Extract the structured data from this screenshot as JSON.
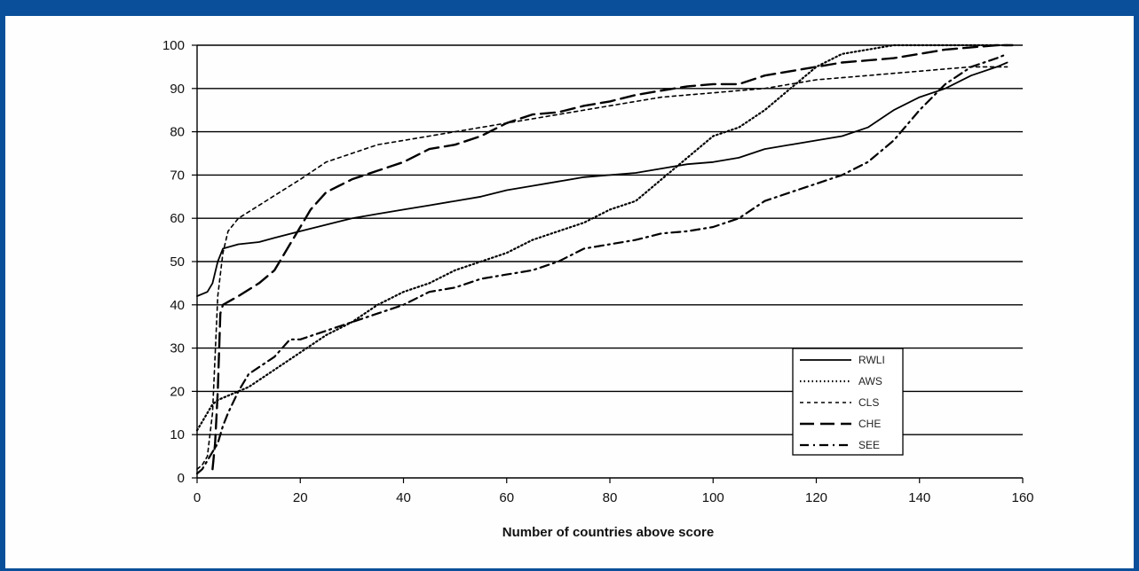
{
  "chart_data": {
    "type": "line",
    "title": "",
    "xlabel": "Number of countries above score",
    "ylabel": "",
    "xlim": [
      0,
      160
    ],
    "ylim": [
      0,
      100
    ],
    "x_ticks": [
      "0",
      "20",
      "40",
      "60",
      "80",
      "100",
      "120",
      "140",
      "160"
    ],
    "y_ticks": [
      "0",
      "10",
      "20",
      "30",
      "40",
      "50",
      "60",
      "70",
      "80",
      "90",
      "100"
    ],
    "grid": "horizontal",
    "legend_position": "lower-right",
    "series": [
      {
        "name": "RWLI",
        "dash": "solid",
        "points": [
          [
            0,
            42
          ],
          [
            2,
            43
          ],
          [
            3,
            45
          ],
          [
            4,
            50
          ],
          [
            5,
            53
          ],
          [
            8,
            54
          ],
          [
            12,
            54.5
          ],
          [
            15,
            55.5
          ],
          [
            20,
            57
          ],
          [
            25,
            58.5
          ],
          [
            30,
            60
          ],
          [
            35,
            61
          ],
          [
            40,
            62
          ],
          [
            45,
            63
          ],
          [
            50,
            64
          ],
          [
            55,
            65
          ],
          [
            60,
            66.5
          ],
          [
            65,
            67.5
          ],
          [
            70,
            68.5
          ],
          [
            75,
            69.5
          ],
          [
            80,
            70
          ],
          [
            85,
            70.5
          ],
          [
            90,
            71.5
          ],
          [
            95,
            72.5
          ],
          [
            100,
            73
          ],
          [
            105,
            74
          ],
          [
            110,
            76
          ],
          [
            115,
            77
          ],
          [
            120,
            78
          ],
          [
            125,
            79
          ],
          [
            130,
            81
          ],
          [
            135,
            85
          ],
          [
            140,
            88
          ],
          [
            145,
            90
          ],
          [
            150,
            93
          ],
          [
            155,
            95
          ],
          [
            157,
            96
          ]
        ]
      },
      {
        "name": "AWS",
        "dash": "dotted",
        "points": [
          [
            0,
            11
          ],
          [
            1,
            13
          ],
          [
            2,
            15
          ],
          [
            3,
            17
          ],
          [
            4,
            18
          ],
          [
            6,
            19
          ],
          [
            8,
            20
          ],
          [
            10,
            21
          ],
          [
            15,
            25
          ],
          [
            20,
            29
          ],
          [
            25,
            33
          ],
          [
            30,
            36
          ],
          [
            35,
            40
          ],
          [
            40,
            43
          ],
          [
            45,
            45
          ],
          [
            50,
            48
          ],
          [
            55,
            50
          ],
          [
            60,
            52
          ],
          [
            65,
            55
          ],
          [
            70,
            57
          ],
          [
            75,
            59
          ],
          [
            80,
            62
          ],
          [
            85,
            64
          ],
          [
            90,
            69
          ],
          [
            95,
            74
          ],
          [
            100,
            79
          ],
          [
            105,
            81
          ],
          [
            110,
            85
          ],
          [
            115,
            90
          ],
          [
            120,
            95
          ],
          [
            125,
            98
          ],
          [
            130,
            99
          ],
          [
            135,
            100
          ],
          [
            140,
            100
          ],
          [
            150,
            100
          ],
          [
            157,
            100
          ]
        ]
      },
      {
        "name": "CLS",
        "dash": "short-dash",
        "points": [
          [
            0,
            2
          ],
          [
            1,
            3
          ],
          [
            2,
            5
          ],
          [
            3,
            15
          ],
          [
            4,
            42
          ],
          [
            5,
            52
          ],
          [
            6,
            57
          ],
          [
            8,
            60
          ],
          [
            12,
            63
          ],
          [
            16,
            66
          ],
          [
            20,
            69
          ],
          [
            25,
            73
          ],
          [
            30,
            75
          ],
          [
            35,
            77
          ],
          [
            40,
            78
          ],
          [
            45,
            79
          ],
          [
            50,
            80
          ],
          [
            55,
            81
          ],
          [
            60,
            82
          ],
          [
            65,
            83
          ],
          [
            70,
            84
          ],
          [
            75,
            85
          ],
          [
            80,
            86
          ],
          [
            85,
            87
          ],
          [
            90,
            88
          ],
          [
            95,
            88.5
          ],
          [
            100,
            89
          ],
          [
            105,
            89.5
          ],
          [
            110,
            90
          ],
          [
            115,
            91
          ],
          [
            120,
            92
          ],
          [
            125,
            92.5
          ],
          [
            130,
            93
          ],
          [
            135,
            93.5
          ],
          [
            140,
            94
          ],
          [
            145,
            94.5
          ],
          [
            150,
            95
          ],
          [
            155,
            95
          ],
          [
            157,
            95
          ]
        ]
      },
      {
        "name": "CHE",
        "dash": "long-dash",
        "points": [
          [
            3,
            2
          ],
          [
            3.5,
            8
          ],
          [
            4,
            20
          ],
          [
            4.5,
            38
          ],
          [
            5,
            40
          ],
          [
            8,
            42
          ],
          [
            12,
            45
          ],
          [
            15,
            48
          ],
          [
            18,
            54
          ],
          [
            20,
            58
          ],
          [
            22,
            62
          ],
          [
            25,
            66
          ],
          [
            30,
            69
          ],
          [
            35,
            71
          ],
          [
            40,
            73
          ],
          [
            45,
            76
          ],
          [
            50,
            77
          ],
          [
            55,
            79
          ],
          [
            60,
            82
          ],
          [
            65,
            84
          ],
          [
            70,
            84.5
          ],
          [
            75,
            86
          ],
          [
            80,
            87
          ],
          [
            85,
            88.5
          ],
          [
            90,
            89.5
          ],
          [
            95,
            90.5
          ],
          [
            100,
            91
          ],
          [
            105,
            91
          ],
          [
            110,
            93
          ],
          [
            115,
            94
          ],
          [
            120,
            95
          ],
          [
            125,
            96
          ],
          [
            130,
            96.5
          ],
          [
            135,
            97
          ],
          [
            140,
            98
          ],
          [
            145,
            99
          ],
          [
            150,
            99.5
          ],
          [
            155,
            100
          ],
          [
            158,
            100
          ]
        ]
      },
      {
        "name": "SEE",
        "dash": "dash-dot",
        "points": [
          [
            0,
            1
          ],
          [
            1,
            2
          ],
          [
            2,
            4
          ],
          [
            3,
            6
          ],
          [
            4,
            8
          ],
          [
            5,
            12
          ],
          [
            6,
            15
          ],
          [
            8,
            20
          ],
          [
            10,
            24
          ],
          [
            15,
            28
          ],
          [
            18,
            32
          ],
          [
            20,
            32
          ],
          [
            25,
            34
          ],
          [
            30,
            36
          ],
          [
            35,
            38
          ],
          [
            40,
            40
          ],
          [
            45,
            43
          ],
          [
            50,
            44
          ],
          [
            55,
            46
          ],
          [
            60,
            47
          ],
          [
            65,
            48
          ],
          [
            70,
            50
          ],
          [
            75,
            53
          ],
          [
            80,
            54
          ],
          [
            85,
            55
          ],
          [
            90,
            56.5
          ],
          [
            95,
            57
          ],
          [
            100,
            58
          ],
          [
            105,
            60
          ],
          [
            110,
            64
          ],
          [
            115,
            66
          ],
          [
            120,
            68
          ],
          [
            125,
            70
          ],
          [
            130,
            73
          ],
          [
            135,
            78
          ],
          [
            140,
            85
          ],
          [
            145,
            91
          ],
          [
            150,
            95
          ],
          [
            155,
            97
          ],
          [
            157,
            98
          ]
        ]
      }
    ]
  }
}
